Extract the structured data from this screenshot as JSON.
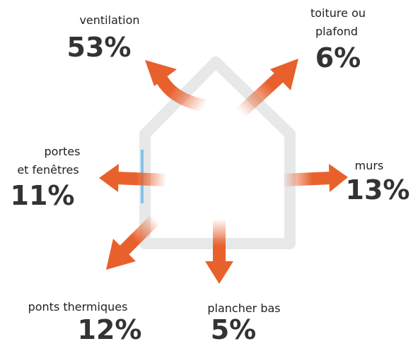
{
  "items": [
    {
      "label": [
        "ventilation"
      ],
      "value": "53%"
    },
    {
      "label": [
        "toiture ou",
        "plafond"
      ],
      "value": "6%"
    },
    {
      "label": [
        "murs"
      ],
      "value": "13%"
    },
    {
      "label": [
        "portes",
        "et fenêtres"
      ],
      "value": "11%"
    },
    {
      "label": [
        "ponts thermiques"
      ],
      "value": "12%"
    },
    {
      "label": [
        "plancher bas"
      ],
      "value": "5%"
    }
  ]
}
